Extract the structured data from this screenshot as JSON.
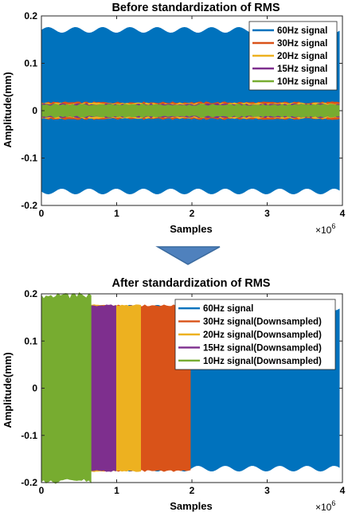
{
  "chart_data": [
    {
      "type": "line",
      "title": "Before standardization of RMS",
      "xlabel": "Samples",
      "ylabel": "Amplitude(mm)",
      "x_exponent_base": "×10",
      "x_exponent_power": "6",
      "xlim": [
        0,
        4
      ],
      "ylim": [
        -0.2,
        0.2
      ],
      "xticks": [
        0,
        1,
        2,
        3,
        4
      ],
      "xtick_labels": [
        "0",
        "1",
        "2",
        "3",
        "4"
      ],
      "yticks": [
        -0.2,
        -0.1,
        0,
        0.1,
        0.2
      ],
      "ytick_labels": [
        "-0.2",
        "-0.1",
        "0",
        "0.1",
        "0.2"
      ],
      "legend_position": "top-right",
      "series": [
        {
          "name": "60Hz signal",
          "color": "#0072BD",
          "x_range": [
            0,
            3.96
          ],
          "amplitude": 0.17
        },
        {
          "name": "30Hz signal",
          "color": "#D95319",
          "x_range": [
            0,
            3.96
          ],
          "amplitude": 0.017
        },
        {
          "name": "20Hz signal",
          "color": "#EDB120",
          "x_range": [
            0,
            3.96
          ],
          "amplitude": 0.015
        },
        {
          "name": "15Hz signal",
          "color": "#7E2F8E",
          "x_range": [
            0,
            3.96
          ],
          "amplitude": 0.013
        },
        {
          "name": "10Hz signal",
          "color": "#77AC30",
          "x_range": [
            0,
            3.96
          ],
          "amplitude": 0.012
        }
      ]
    },
    {
      "type": "line",
      "title": "After standardization of RMS",
      "xlabel": "Samples",
      "ylabel": "Amplitude(mm)",
      "x_exponent_base": "×10",
      "x_exponent_power": "6",
      "xlim": [
        0,
        4
      ],
      "ylim": [
        -0.2,
        0.2
      ],
      "xticks": [
        0,
        1,
        2,
        3,
        4
      ],
      "xtick_labels": [
        "0",
        "1",
        "2",
        "3",
        "4"
      ],
      "yticks": [
        -0.2,
        -0.1,
        0,
        0.1,
        0.2
      ],
      "ytick_labels": [
        "-0.2",
        "-0.1",
        "0",
        "0.1",
        "0.2"
      ],
      "legend_position": "top-right",
      "series": [
        {
          "name": "60Hz signal",
          "color": "#0072BD",
          "x_range": [
            0,
            3.96
          ],
          "amplitude": 0.17
        },
        {
          "name": "30Hz signal(Downsampled)",
          "color": "#D95319",
          "x_range": [
            0,
            1.98
          ],
          "amplitude": 0.175
        },
        {
          "name": "20Hz signal(Downsampled)",
          "color": "#EDB120",
          "x_range": [
            0,
            1.32
          ],
          "amplitude": 0.175
        },
        {
          "name": "15Hz signal(Downsampled)",
          "color": "#7E2F8E",
          "x_range": [
            0,
            0.99
          ],
          "amplitude": 0.175
        },
        {
          "name": "10Hz signal(Downsampled)",
          "color": "#77AC30",
          "x_range": [
            0,
            0.66
          ],
          "amplitude": 0.19
        }
      ]
    }
  ],
  "arrow": {
    "color": "#4F81BD",
    "icon": "down-arrow-icon"
  }
}
